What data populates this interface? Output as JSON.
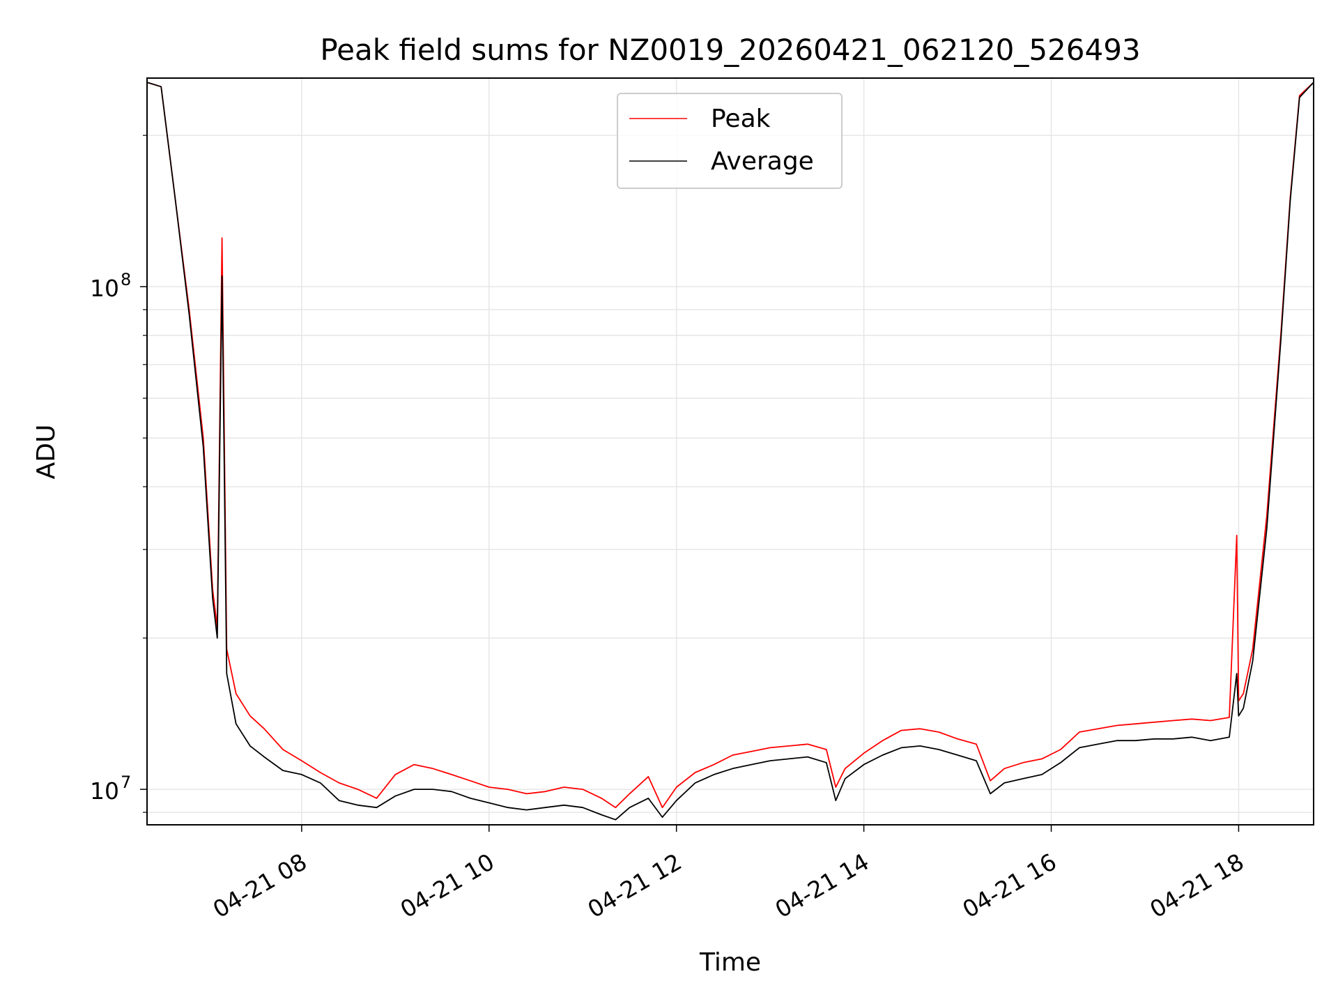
{
  "chart_data": {
    "type": "line",
    "title": "Peak field sums for NZ0019_20260421_062120_526493",
    "xlabel": "Time",
    "ylabel": "ADU",
    "yscale": "log",
    "ylim": [
      8500000,
      260000000
    ],
    "xlim": [
      6.35,
      18.8
    ],
    "grid": true,
    "legend_position": "upper-center",
    "x_ticks": [
      {
        "value": 8,
        "label": "04-21 08"
      },
      {
        "value": 10,
        "label": "04-21 10"
      },
      {
        "value": 12,
        "label": "04-21 12"
      },
      {
        "value": 14,
        "label": "04-21 14"
      },
      {
        "value": 16,
        "label": "04-21 16"
      },
      {
        "value": 18,
        "label": "04-21 18"
      }
    ],
    "y_major_ticks": [
      {
        "value": 10000000,
        "base": "10",
        "exp": "7"
      },
      {
        "value": 100000000,
        "base": "10",
        "exp": "8"
      }
    ],
    "y_minor_ticks": [
      9000000,
      20000000,
      30000000,
      40000000,
      50000000,
      60000000,
      70000000,
      80000000,
      90000000,
      200000000
    ],
    "series": [
      {
        "name": "Peak",
        "color": "#ff0000",
        "x": [
          6.35,
          6.5,
          6.65,
          6.8,
          6.95,
          7.05,
          7.1,
          7.15,
          7.2,
          7.3,
          7.45,
          7.6,
          7.8,
          8.0,
          8.2,
          8.4,
          8.6,
          8.8,
          9.0,
          9.2,
          9.4,
          9.6,
          9.8,
          10.0,
          10.2,
          10.4,
          10.6,
          10.8,
          11.0,
          11.2,
          11.35,
          11.5,
          11.7,
          11.85,
          12.0,
          12.2,
          12.4,
          12.6,
          12.8,
          13.0,
          13.2,
          13.4,
          13.6,
          13.7,
          13.8,
          14.0,
          14.2,
          14.4,
          14.6,
          14.8,
          15.0,
          15.2,
          15.35,
          15.5,
          15.7,
          15.9,
          16.1,
          16.3,
          16.5,
          16.7,
          16.9,
          17.1,
          17.3,
          17.5,
          17.7,
          17.9,
          17.98,
          18.0,
          18.05,
          18.15,
          18.3,
          18.45,
          18.55,
          18.65,
          18.8
        ],
        "values": [
          255000000,
          250000000,
          150000000,
          90000000,
          50000000,
          25000000,
          21000000,
          125000000,
          19000000,
          15500000,
          14000000,
          13200000,
          12000000,
          11400000,
          10800000,
          10300000,
          10000000,
          9600000,
          10700000,
          11200000,
          11000000,
          10700000,
          10400000,
          10100000,
          10000000,
          9800000,
          9900000,
          10100000,
          10000000,
          9600000,
          9200000,
          9800000,
          10600000,
          9200000,
          10100000,
          10800000,
          11200000,
          11700000,
          11900000,
          12100000,
          12200000,
          12300000,
          12000000,
          10100000,
          11000000,
          11800000,
          12500000,
          13100000,
          13200000,
          13000000,
          12600000,
          12300000,
          10400000,
          11000000,
          11300000,
          11500000,
          12000000,
          13000000,
          13200000,
          13400000,
          13500000,
          13600000,
          13700000,
          13800000,
          13700000,
          13900000,
          32000000,
          15000000,
          15500000,
          19000000,
          35000000,
          80000000,
          150000000,
          240000000,
          255000000
        ]
      },
      {
        "name": "Average",
        "color": "#000000",
        "x": [
          6.35,
          6.5,
          6.65,
          6.8,
          6.95,
          7.05,
          7.1,
          7.15,
          7.2,
          7.3,
          7.45,
          7.6,
          7.8,
          8.0,
          8.2,
          8.4,
          8.6,
          8.8,
          9.0,
          9.2,
          9.4,
          9.6,
          9.8,
          10.0,
          10.2,
          10.4,
          10.6,
          10.8,
          11.0,
          11.2,
          11.35,
          11.5,
          11.7,
          11.85,
          12.0,
          12.2,
          12.4,
          12.6,
          12.8,
          13.0,
          13.2,
          13.4,
          13.6,
          13.7,
          13.8,
          14.0,
          14.2,
          14.4,
          14.6,
          14.8,
          15.0,
          15.2,
          15.35,
          15.5,
          15.7,
          15.9,
          16.1,
          16.3,
          16.5,
          16.7,
          16.9,
          17.1,
          17.3,
          17.5,
          17.7,
          17.9,
          17.98,
          18.0,
          18.05,
          18.15,
          18.3,
          18.45,
          18.55,
          18.65,
          18.8
        ],
        "values": [
          255000000,
          250000000,
          150000000,
          88000000,
          48000000,
          24000000,
          20000000,
          105000000,
          17000000,
          13500000,
          12200000,
          11600000,
          10900000,
          10700000,
          10300000,
          9500000,
          9300000,
          9200000,
          9700000,
          10000000,
          10000000,
          9900000,
          9600000,
          9400000,
          9200000,
          9100000,
          9200000,
          9300000,
          9200000,
          8900000,
          8700000,
          9200000,
          9600000,
          8800000,
          9500000,
          10300000,
          10700000,
          11000000,
          11200000,
          11400000,
          11500000,
          11600000,
          11300000,
          9500000,
          10500000,
          11200000,
          11700000,
          12100000,
          12200000,
          12000000,
          11700000,
          11400000,
          9800000,
          10300000,
          10500000,
          10700000,
          11300000,
          12100000,
          12300000,
          12500000,
          12500000,
          12600000,
          12600000,
          12700000,
          12500000,
          12700000,
          17000000,
          14000000,
          14500000,
          18000000,
          33000000,
          78000000,
          148000000,
          238000000,
          255000000
        ]
      }
    ]
  }
}
